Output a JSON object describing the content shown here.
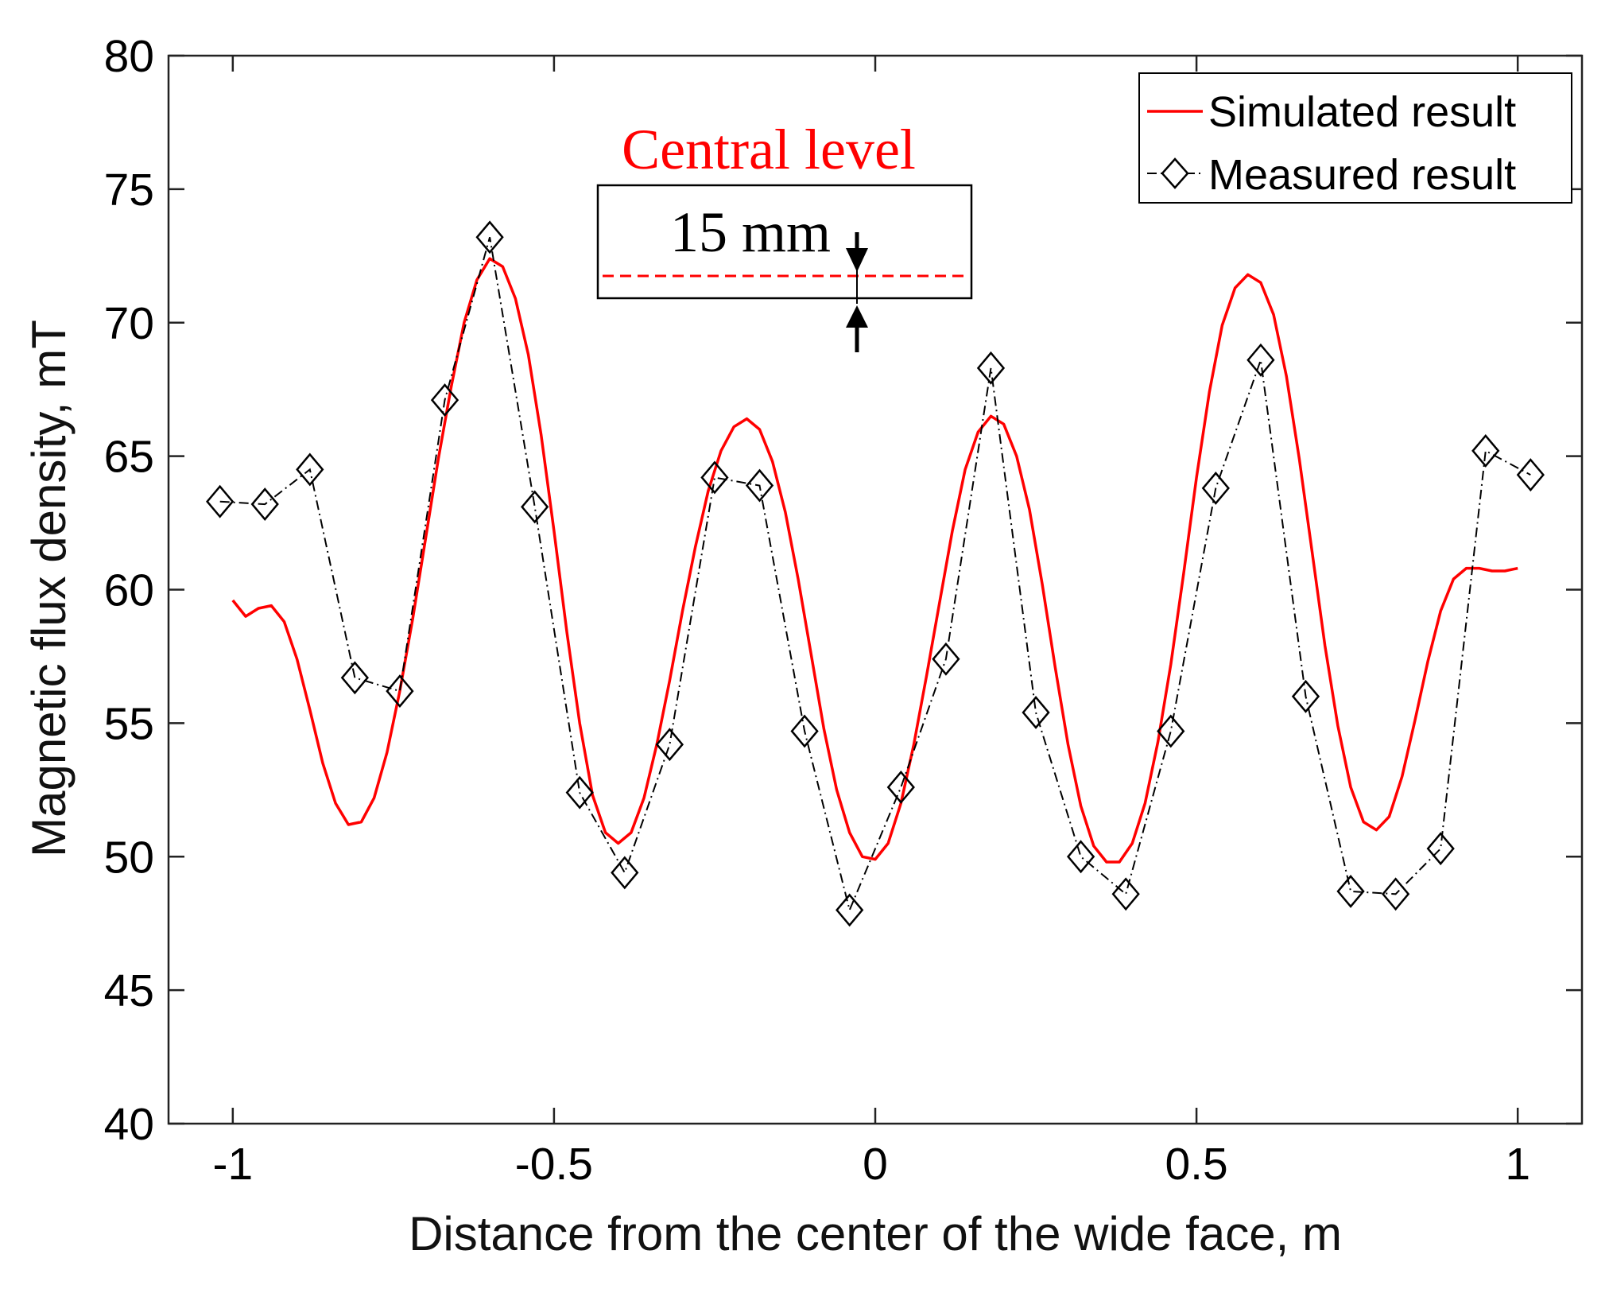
{
  "chart_data": {
    "type": "line",
    "xlabel": "Distance from the center of the wide face, m",
    "ylabel": "Magnetic flux density, mT",
    "xlim": [
      -1.1,
      1.1
    ],
    "ylim": [
      40,
      80
    ],
    "xticks": [
      -1,
      -0.5,
      0,
      0.5,
      1
    ],
    "xtick_labels": [
      "-1",
      "-0.5",
      "0",
      "0.5",
      "1"
    ],
    "yticks": [
      40,
      45,
      50,
      55,
      60,
      65,
      70,
      75,
      80
    ],
    "ytick_labels": [
      "40",
      "45",
      "50",
      "55",
      "60",
      "65",
      "70",
      "75",
      "80"
    ],
    "legend_position": "top-right",
    "series": [
      {
        "name": "Simulated result",
        "style": "solid",
        "color": "#ff0000",
        "points": [
          [
            -1.0,
            59.6
          ],
          [
            -0.98,
            59.0
          ],
          [
            -0.96,
            59.3
          ],
          [
            -0.94,
            59.4
          ],
          [
            -0.92,
            58.8
          ],
          [
            -0.9,
            57.4
          ],
          [
            -0.88,
            55.5
          ],
          [
            -0.86,
            53.5
          ],
          [
            -0.84,
            52.0
          ],
          [
            -0.82,
            51.2
          ],
          [
            -0.8,
            51.3
          ],
          [
            -0.78,
            52.2
          ],
          [
            -0.76,
            53.9
          ],
          [
            -0.74,
            56.2
          ],
          [
            -0.72,
            58.9
          ],
          [
            -0.7,
            61.9
          ],
          [
            -0.68,
            64.9
          ],
          [
            -0.66,
            67.6
          ],
          [
            -0.64,
            70.0
          ],
          [
            -0.62,
            71.6
          ],
          [
            -0.6,
            72.4
          ],
          [
            -0.58,
            72.1
          ],
          [
            -0.56,
            70.9
          ],
          [
            -0.54,
            68.8
          ],
          [
            -0.52,
            65.8
          ],
          [
            -0.5,
            62.2
          ],
          [
            -0.48,
            58.4
          ],
          [
            -0.46,
            55.0
          ],
          [
            -0.44,
            52.3
          ],
          [
            -0.42,
            50.9
          ],
          [
            -0.4,
            50.5
          ],
          [
            -0.38,
            50.9
          ],
          [
            -0.36,
            52.2
          ],
          [
            -0.34,
            54.2
          ],
          [
            -0.32,
            56.6
          ],
          [
            -0.3,
            59.2
          ],
          [
            -0.28,
            61.6
          ],
          [
            -0.26,
            63.7
          ],
          [
            -0.24,
            65.2
          ],
          [
            -0.22,
            66.1
          ],
          [
            -0.2,
            66.4
          ],
          [
            -0.18,
            66.0
          ],
          [
            -0.16,
            64.8
          ],
          [
            -0.14,
            62.9
          ],
          [
            -0.12,
            60.4
          ],
          [
            -0.1,
            57.6
          ],
          [
            -0.08,
            54.8
          ],
          [
            -0.06,
            52.5
          ],
          [
            -0.04,
            50.9
          ],
          [
            -0.02,
            50.0
          ],
          [
            0.0,
            49.9
          ],
          [
            0.02,
            50.5
          ],
          [
            0.04,
            52.0
          ],
          [
            0.06,
            54.2
          ],
          [
            0.08,
            56.8
          ],
          [
            0.1,
            59.5
          ],
          [
            0.12,
            62.2
          ],
          [
            0.14,
            64.5
          ],
          [
            0.16,
            65.9
          ],
          [
            0.18,
            66.5
          ],
          [
            0.2,
            66.2
          ],
          [
            0.22,
            65.0
          ],
          [
            0.24,
            63.0
          ],
          [
            0.26,
            60.2
          ],
          [
            0.28,
            57.1
          ],
          [
            0.3,
            54.2
          ],
          [
            0.32,
            51.9
          ],
          [
            0.34,
            50.4
          ],
          [
            0.36,
            49.8
          ],
          [
            0.38,
            49.8
          ],
          [
            0.4,
            50.5
          ],
          [
            0.42,
            52.0
          ],
          [
            0.44,
            54.3
          ],
          [
            0.46,
            57.2
          ],
          [
            0.48,
            60.6
          ],
          [
            0.5,
            64.2
          ],
          [
            0.52,
            67.4
          ],
          [
            0.54,
            69.9
          ],
          [
            0.56,
            71.3
          ],
          [
            0.58,
            71.8
          ],
          [
            0.6,
            71.5
          ],
          [
            0.62,
            70.3
          ],
          [
            0.64,
            68.0
          ],
          [
            0.66,
            64.9
          ],
          [
            0.68,
            61.4
          ],
          [
            0.7,
            57.9
          ],
          [
            0.72,
            54.9
          ],
          [
            0.74,
            52.6
          ],
          [
            0.76,
            51.3
          ],
          [
            0.78,
            51.0
          ],
          [
            0.8,
            51.5
          ],
          [
            0.82,
            53.0
          ],
          [
            0.84,
            55.1
          ],
          [
            0.86,
            57.3
          ],
          [
            0.88,
            59.2
          ],
          [
            0.9,
            60.4
          ],
          [
            0.92,
            60.8
          ],
          [
            0.94,
            60.8
          ],
          [
            0.96,
            60.7
          ],
          [
            0.98,
            60.7
          ],
          [
            1.0,
            60.8
          ]
        ]
      },
      {
        "name": "Measured result",
        "style": "dash-dot",
        "color": "#000000",
        "marker": "diamond",
        "points": [
          [
            -1.02,
            63.3
          ],
          [
            -0.95,
            63.2
          ],
          [
            -0.88,
            64.5
          ],
          [
            -0.81,
            56.7
          ],
          [
            -0.74,
            56.2
          ],
          [
            -0.67,
            67.1
          ],
          [
            -0.6,
            73.2
          ],
          [
            -0.53,
            63.1
          ],
          [
            -0.46,
            52.4
          ],
          [
            -0.39,
            49.4
          ],
          [
            -0.32,
            54.2
          ],
          [
            -0.25,
            64.2
          ],
          [
            -0.18,
            63.9
          ],
          [
            -0.11,
            54.7
          ],
          [
            -0.04,
            48.0
          ],
          [
            0.04,
            52.6
          ],
          [
            0.11,
            57.4
          ],
          [
            0.18,
            68.3
          ],
          [
            0.25,
            55.4
          ],
          [
            0.32,
            50.0
          ],
          [
            0.39,
            48.6
          ],
          [
            0.46,
            54.7
          ],
          [
            0.53,
            63.8
          ],
          [
            0.6,
            68.6
          ],
          [
            0.67,
            56.0
          ],
          [
            0.74,
            48.7
          ],
          [
            0.81,
            48.6
          ],
          [
            0.88,
            50.3
          ],
          [
            0.95,
            65.2
          ],
          [
            1.02,
            64.3
          ]
        ]
      }
    ],
    "annotations": {
      "title": "Central level",
      "distance": "15 mm"
    }
  }
}
